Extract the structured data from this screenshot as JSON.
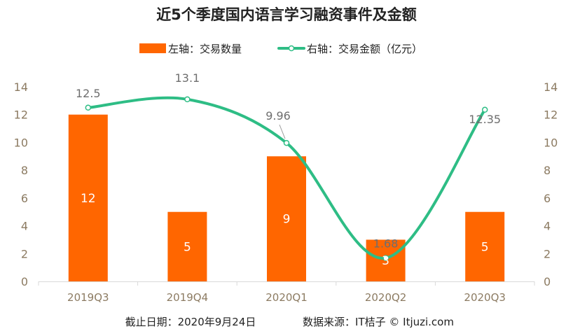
{
  "chart_data": {
    "type": "bar+line",
    "title": "近5个季度国内语言学习融资事件及金额",
    "categories": [
      "2019Q3",
      "2019Q4",
      "2020Q1",
      "2020Q2",
      "2020Q3"
    ],
    "series": [
      {
        "name": "左轴：交易数量",
        "kind": "bar",
        "axis": "left",
        "values": [
          12,
          5,
          9,
          3,
          5
        ],
        "color": "#FF6600"
      },
      {
        "name": "右轴：交易金额（亿元）",
        "kind": "line",
        "axis": "right",
        "values": [
          12.5,
          13.1,
          9.96,
          1.68,
          12.35
        ],
        "color": "#2EBD85"
      }
    ],
    "yleft": {
      "min": 0,
      "max": 14,
      "ticks": [
        0,
        2,
        4,
        6,
        8,
        10,
        12,
        14
      ]
    },
    "yright": {
      "min": 0,
      "max": 14,
      "ticks": [
        0,
        2,
        4,
        6,
        8,
        10,
        12,
        14
      ]
    },
    "bar_labels": [
      "12",
      "5",
      "9",
      "3",
      "5"
    ],
    "line_labels": [
      "12.5",
      "13.1",
      "9.96",
      "1.68",
      "12.35"
    ],
    "legend_position": "top",
    "grid": false
  },
  "footer": {
    "date_text": "截止日期：2020年9月24日",
    "source_text": "数据来源：IT桔子 © Itjuzi.com"
  },
  "colors": {
    "title": "#222222",
    "tick": "#8C7B62",
    "axis_line": "#D9D9D9",
    "footer": "#222222",
    "line_label": "#6E6E6E"
  }
}
